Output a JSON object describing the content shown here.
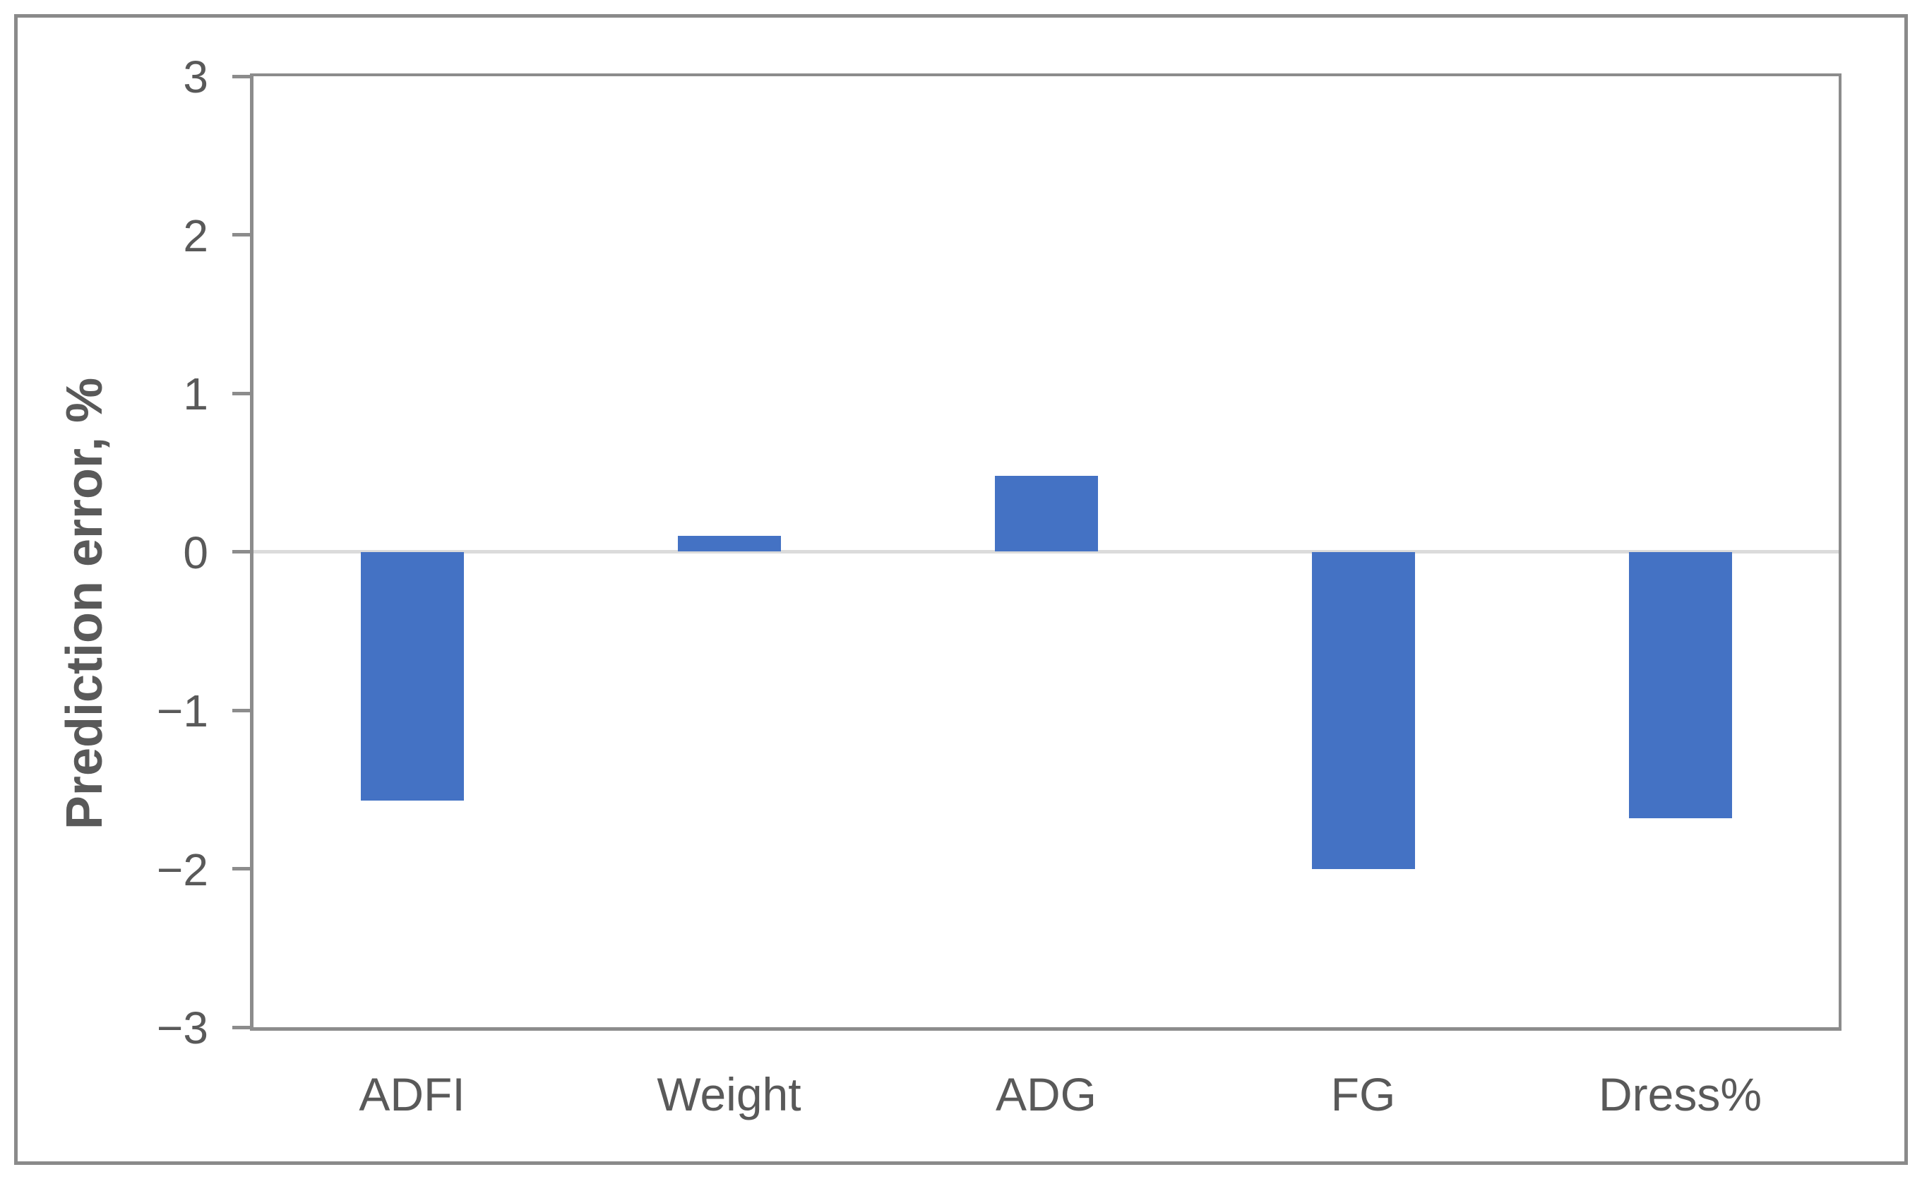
{
  "figure": {
    "background": "#FFFFFF",
    "outer_border_color": "#8A8A8A"
  },
  "chart_data": {
    "type": "bar",
    "title": "",
    "categories": [
      "ADFI",
      "Weight",
      "ADG",
      "FG",
      "Dress%"
    ],
    "values": [
      -1.57,
      0.1,
      0.48,
      -2.0,
      -1.68
    ],
    "xlabel": "",
    "ylabel": "Prediction error, %",
    "ylim": [
      -3,
      3
    ],
    "yticks": [
      3,
      2,
      1,
      0,
      -1,
      -2,
      -3
    ],
    "ytick_labels": [
      "3",
      "2",
      "1",
      "0",
      "−1",
      "−2",
      "−3"
    ],
    "grid": "horizontal gridline at y=0 only",
    "legend": "none",
    "colors": {
      "bar": "#4472C4",
      "axis": "#8C8C8C",
      "zero_line": "#DBDBDB",
      "tick_text": "#595959",
      "axis_title_text": "#595959"
    }
  }
}
